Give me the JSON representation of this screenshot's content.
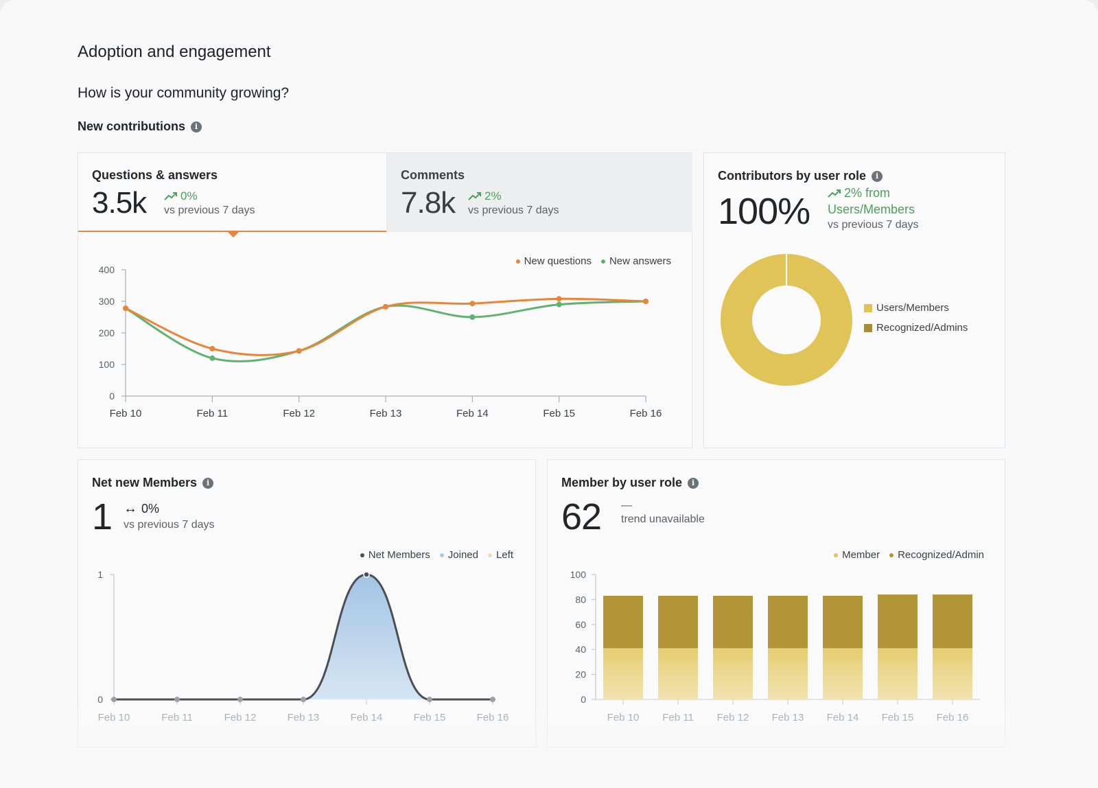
{
  "header": {
    "title": "Adoption and engagement",
    "question": "How is your community growing?",
    "subtitle": "New contributions"
  },
  "contributions": {
    "tabs": [
      {
        "label": "Questions & answers",
        "value": "3.5k",
        "trend": "0%",
        "vs": "vs previous 7 days"
      },
      {
        "label": "Comments",
        "value": "7.8k",
        "trend": "2%",
        "vs": "vs previous 7 days"
      }
    ]
  },
  "contributors": {
    "title": "Contributors by user role",
    "value": "100%",
    "trend_line1": "2% from",
    "trend_line2": "Users/Members",
    "vs": "vs previous 7 days"
  },
  "net_members": {
    "title": "Net new Members",
    "value": "1",
    "trend": "0%",
    "vs": "vs previous 7 days"
  },
  "member_role": {
    "title": "Member by user role",
    "value": "62",
    "trend_dash": "—",
    "trend_text": "trend unavailable"
  },
  "colors": {
    "orange": "#e8853b",
    "green": "#5fb270",
    "gold": "#e0c457",
    "gold_dark": "#b29536",
    "navy": "#4a4f55",
    "blue_fill": "#a9c9e6",
    "blue_legend": "#a8c8ea",
    "left_legend": "#f0d8b8"
  },
  "chart_data": [
    {
      "type": "line",
      "categories": [
        "Feb 10",
        "Feb 11",
        "Feb 12",
        "Feb 13",
        "Feb 14",
        "Feb 15",
        "Feb 16"
      ],
      "ylim": [
        0,
        400
      ],
      "yticks": [
        0,
        100,
        200,
        300,
        400
      ],
      "series": [
        {
          "name": "New questions",
          "values": [
            278,
            150,
            143,
            283,
            293,
            308,
            300
          ]
        },
        {
          "name": "New answers",
          "values": [
            278,
            120,
            143,
            283,
            250,
            290,
            300
          ]
        }
      ],
      "legend": "top-right"
    },
    {
      "type": "pie",
      "labels": [
        "Users/Members",
        "Recognized/Admins"
      ],
      "values": [
        100,
        0
      ],
      "legend": "right"
    },
    {
      "type": "area",
      "categories": [
        "Feb 10",
        "Feb 11",
        "Feb 12",
        "Feb 13",
        "Feb 14",
        "Feb 15",
        "Feb 16"
      ],
      "ylim": [
        0,
        1
      ],
      "yticks": [
        0,
        1
      ],
      "series": [
        {
          "name": "Net Members",
          "values": [
            0,
            0,
            0,
            0,
            1,
            0,
            0
          ]
        },
        {
          "name": "Joined",
          "values": [
            0,
            0,
            0,
            0,
            1,
            0,
            0
          ]
        },
        {
          "name": "Left",
          "values": [
            0,
            0,
            0,
            0,
            0,
            0,
            0
          ]
        }
      ],
      "legend": "top-right"
    },
    {
      "type": "bar",
      "stacked": true,
      "categories": [
        "Feb 10",
        "Feb 11",
        "Feb 12",
        "Feb 13",
        "Feb 14",
        "Feb 15",
        "Feb 16"
      ],
      "ylim": [
        0,
        100
      ],
      "yticks": [
        0,
        20,
        40,
        60,
        80,
        100
      ],
      "series": [
        {
          "name": "Member",
          "values": [
            41,
            41,
            41,
            41,
            41,
            41,
            41
          ]
        },
        {
          "name": "Recognized/Admin",
          "values": [
            42,
            42,
            42,
            42,
            42,
            43,
            43
          ]
        }
      ],
      "legend": "top-right"
    }
  ]
}
